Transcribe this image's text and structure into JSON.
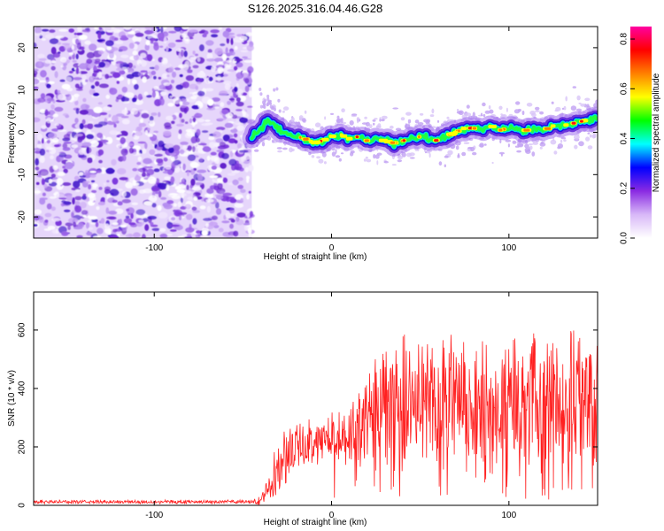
{
  "title": "S126.2025.316.04.46.G28",
  "colors": {
    "snr_line": "#ff2020",
    "frame": "#000000",
    "background": "#ffffff"
  },
  "chart_data": [
    {
      "type": "heatmap",
      "name": "spectrogram",
      "xlabel": "Height of straight line (km)",
      "ylabel": "Frequency (Hz)",
      "xlim": [
        -168,
        150
      ],
      "ylim": [
        -25,
        25
      ],
      "xticks": [
        -100,
        0,
        100
      ],
      "yticks": [
        -20,
        -10,
        0,
        10,
        20
      ],
      "colorbar": {
        "label": "Normalized spectral amplitude",
        "range": [
          0.0,
          0.85
        ],
        "ticks": [
          0.0,
          0.2,
          0.4,
          0.6,
          0.8
        ],
        "colormap": [
          "#ffffff",
          "#d8b8f8",
          "#8a2be2",
          "#0000ff",
          "#00ffff",
          "#00ff00",
          "#ffff00",
          "#ff8000",
          "#ff0000",
          "#ff00a0"
        ]
      },
      "noise_region_x": [
        -168,
        -45
      ],
      "signal_track": {
        "x": [
          -45,
          -40,
          -35,
          -30,
          -25,
          -20,
          -15,
          -10,
          -5,
          0,
          5,
          10,
          15,
          20,
          25,
          30,
          35,
          40,
          45,
          50,
          55,
          60,
          65,
          70,
          75,
          80,
          85,
          90,
          95,
          100,
          105,
          110,
          115,
          120,
          125,
          130,
          135,
          140,
          145,
          150
        ],
        "freq": [
          -1,
          0.5,
          3,
          1,
          -0.5,
          -1,
          -1.5,
          -2.5,
          -2,
          -1,
          -0.5,
          -1.5,
          -1,
          -2,
          -1.5,
          -2,
          -2.5,
          -2,
          -1.5,
          -1,
          -1.5,
          -2,
          -1,
          0,
          1,
          1,
          0.5,
          1.5,
          0.5,
          1,
          0.5,
          0.5,
          1,
          0.5,
          1.5,
          1.5,
          2,
          2.5,
          3,
          3.5
        ]
      }
    },
    {
      "type": "line",
      "name": "snr",
      "xlabel": "Height of straight line (km)",
      "ylabel": "SNR (10 * v/v)",
      "xlim": [
        -168,
        150
      ],
      "ylim": [
        0,
        730
      ],
      "xticks": [
        -100,
        0,
        100
      ],
      "yticks": [
        0,
        200,
        400,
        600
      ],
      "series": [
        {
          "name": "SNR",
          "x": [
            -168,
            -150,
            -120,
            -90,
            -60,
            -45,
            -40,
            -30,
            -25,
            -20,
            -15,
            -10,
            0,
            10,
            20,
            30,
            40,
            50,
            60,
            70,
            80,
            90,
            100,
            110,
            120,
            130,
            140,
            145,
            150
          ],
          "mean": [
            12,
            12,
            12,
            12,
            12,
            12,
            15,
            130,
            180,
            200,
            210,
            220,
            230,
            240,
            300,
            330,
            340,
            350,
            360,
            355,
            350,
            340,
            345,
            355,
            360,
            355,
            360,
            350,
            350
          ],
          "spread": [
            6,
            6,
            6,
            6,
            6,
            6,
            15,
            90,
            90,
            80,
            80,
            80,
            80,
            90,
            180,
            200,
            220,
            220,
            220,
            220,
            220,
            220,
            220,
            220,
            230,
            230,
            240,
            230,
            230
          ]
        }
      ]
    }
  ]
}
